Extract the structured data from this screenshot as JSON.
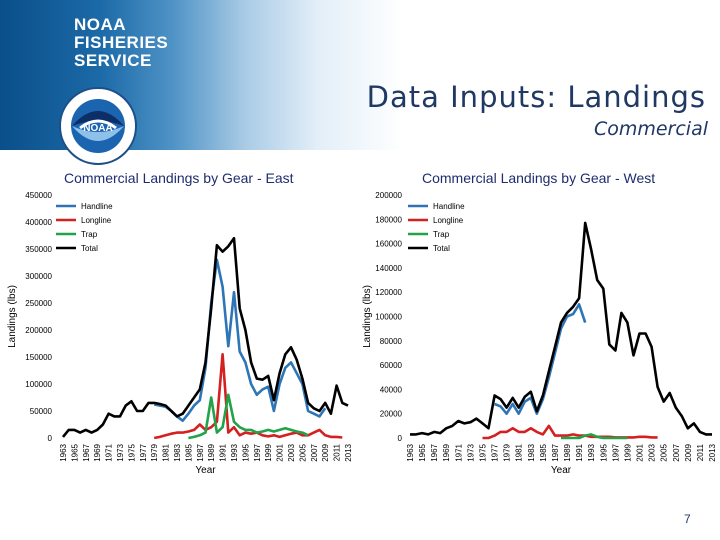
{
  "header": {
    "logo_lines": [
      "NOAA",
      "FISHERIES",
      "SERVICE"
    ],
    "title": "Data Inputs: Landings",
    "subtitle": "Commercial",
    "page_number": "7",
    "seal_text": "NOAA"
  },
  "colors": {
    "handline": "#2e75b6",
    "longline": "#d42020",
    "trap": "#22a34a",
    "total": "#000000"
  },
  "chart_data": [
    {
      "type": "line",
      "title": "Commercial Landings by Gear - East",
      "xlabel": "Year",
      "ylabel": "Landings (lbs)",
      "ylim": [
        0,
        450000
      ],
      "yticks": [
        0,
        50000,
        100000,
        150000,
        200000,
        250000,
        300000,
        350000,
        400000,
        450000
      ],
      "xlim": [
        1963,
        2013
      ],
      "xticks": [
        1963,
        1965,
        1967,
        1969,
        1971,
        1973,
        1975,
        1977,
        1979,
        1981,
        1983,
        1985,
        1987,
        1989,
        1991,
        1993,
        1995,
        1997,
        1999,
        2001,
        2003,
        2005,
        2007,
        2009,
        2011,
        2013
      ],
      "grid": false,
      "legend": "top-left",
      "series": [
        {
          "name": "Handline",
          "color_key": "handline",
          "x": [
            1979,
            1980,
            1981,
            1982,
            1983,
            1984,
            1985,
            1986,
            1987,
            1988,
            1989,
            1990,
            1991,
            1992,
            1993,
            1994,
            1995,
            1996,
            1997,
            1998,
            1999,
            2000,
            2001,
            2002,
            2003,
            2004,
            2005,
            2006,
            2007,
            2008,
            2009
          ],
          "values": [
            62000,
            60000,
            58000,
            50000,
            40000,
            32000,
            45000,
            60000,
            70000,
            130000,
            250000,
            330000,
            280000,
            170000,
            270000,
            160000,
            140000,
            100000,
            80000,
            90000,
            95000,
            50000,
            100000,
            130000,
            140000,
            120000,
            100000,
            50000,
            45000,
            40000,
            55000
          ]
        },
        {
          "name": "Longline",
          "color_key": "longline",
          "x": [
            1979,
            1980,
            1981,
            1982,
            1983,
            1984,
            1985,
            1986,
            1987,
            1988,
            1989,
            1990,
            1991,
            1992,
            1993,
            1994,
            1995,
            1996,
            1997,
            1998,
            1999,
            2000,
            2001,
            2002,
            2003,
            2004,
            2005,
            2006,
            2007,
            2008,
            2009,
            2010,
            2011,
            2012
          ],
          "values": [
            0,
            2000,
            5000,
            8000,
            10000,
            10000,
            12000,
            15000,
            25000,
            15000,
            20000,
            30000,
            155000,
            10000,
            20000,
            5000,
            10000,
            8000,
            10000,
            5000,
            3000,
            5000,
            2000,
            5000,
            8000,
            10000,
            5000,
            5000,
            10000,
            15000,
            5000,
            2000,
            2000,
            1000
          ]
        },
        {
          "name": "Trap",
          "color_key": "trap",
          "x": [
            1985,
            1986,
            1987,
            1988,
            1989,
            1990,
            1991,
            1992,
            1993,
            1994,
            1995,
            1996,
            1997,
            1998,
            1999,
            2000,
            2001,
            2002,
            2003,
            2004,
            2005,
            2006
          ],
          "values": [
            0,
            2000,
            5000,
            10000,
            75000,
            10000,
            20000,
            80000,
            30000,
            20000,
            15000,
            15000,
            10000,
            12000,
            15000,
            12000,
            15000,
            18000,
            15000,
            12000,
            10000,
            5000
          ]
        },
        {
          "name": "Total",
          "color_key": "total",
          "x": [
            1963,
            1964,
            1965,
            1966,
            1967,
            1968,
            1969,
            1970,
            1971,
            1972,
            1973,
            1974,
            1975,
            1976,
            1977,
            1978,
            1979,
            1980,
            1981,
            1982,
            1983,
            1984,
            1985,
            1986,
            1987,
            1988,
            1989,
            1990,
            1991,
            1992,
            1993,
            1994,
            1995,
            1996,
            1997,
            1998,
            1999,
            2000,
            2001,
            2002,
            2003,
            2004,
            2005,
            2006,
            2007,
            2008,
            2009,
            2010,
            2011,
            2012,
            2013
          ],
          "values": [
            2000,
            15000,
            15000,
            10000,
            15000,
            10000,
            15000,
            25000,
            45000,
            40000,
            40000,
            60000,
            68000,
            50000,
            50000,
            65000,
            65000,
            63000,
            60000,
            50000,
            40000,
            45000,
            60000,
            75000,
            90000,
            140000,
            240000,
            357000,
            345000,
            355000,
            370000,
            240000,
            200000,
            140000,
            110000,
            108000,
            115000,
            70000,
            120000,
            155000,
            168000,
            145000,
            110000,
            65000,
            55000,
            50000,
            65000,
            45000,
            97000,
            65000,
            60000
          ]
        }
      ]
    },
    {
      "type": "line",
      "title": "Commercial Landings by Gear - West",
      "xlabel": "Year",
      "ylabel": "Landings (lbs)",
      "ylim": [
        0,
        200000
      ],
      "yticks": [
        0,
        20000,
        40000,
        60000,
        80000,
        100000,
        120000,
        140000,
        160000,
        180000,
        200000
      ],
      "xlim": [
        1963,
        2013
      ],
      "xticks": [
        1963,
        1965,
        1967,
        1969,
        1971,
        1973,
        1975,
        1977,
        1979,
        1981,
        1983,
        1985,
        1987,
        1989,
        1991,
        1993,
        1995,
        1997,
        1999,
        2001,
        2003,
        2005,
        2007,
        2009,
        2011,
        2013
      ],
      "grid": false,
      "legend": "top-left",
      "series": [
        {
          "name": "Handline",
          "color_key": "handline",
          "x": [
            1977,
            1978,
            1979,
            1980,
            1981,
            1982,
            1983,
            1984,
            1985,
            1986,
            1987,
            1988,
            1989,
            1990,
            1991,
            1992
          ],
          "values": [
            28000,
            26000,
            20000,
            28000,
            20000,
            30000,
            33000,
            20000,
            32000,
            50000,
            70000,
            90000,
            100000,
            102000,
            110000,
            95000
          ]
        },
        {
          "name": "Longline",
          "color_key": "longline",
          "x": [
            1975,
            1976,
            1977,
            1978,
            1979,
            1980,
            1981,
            1982,
            1983,
            1984,
            1985,
            1986,
            1987,
            1988,
            1989,
            1990,
            1991,
            1992,
            1993,
            1994,
            1995,
            1996,
            1997,
            1998,
            1999,
            2000,
            2001,
            2002,
            2003,
            2004
          ],
          "values": [
            0,
            0,
            2000,
            5000,
            5000,
            8000,
            5000,
            5000,
            8000,
            5000,
            3000,
            10000,
            2000,
            2000,
            2000,
            3000,
            2000,
            2000,
            1000,
            1000,
            1000,
            1000,
            500,
            500,
            500,
            500,
            1000,
            1000,
            500,
            500
          ]
        },
        {
          "name": "Trap",
          "color_key": "trap",
          "x": [
            1988,
            1989,
            1990,
            1991,
            1992,
            1993,
            1994,
            1995,
            1996,
            1997,
            1998,
            1999
          ],
          "values": [
            0,
            0,
            0,
            0,
            2000,
            3000,
            1000,
            0,
            0,
            0,
            0,
            0
          ]
        },
        {
          "name": "Total",
          "color_key": "total",
          "x": [
            1963,
            1964,
            1965,
            1966,
            1967,
            1968,
            1969,
            1970,
            1971,
            1972,
            1973,
            1974,
            1975,
            1976,
            1977,
            1978,
            1979,
            1980,
            1981,
            1982,
            1983,
            1984,
            1985,
            1986,
            1987,
            1988,
            1989,
            1990,
            1991,
            1992,
            1993,
            1994,
            1995,
            1996,
            1997,
            1998,
            1999,
            2000,
            2001,
            2002,
            2003,
            2004,
            2005,
            2006,
            2007,
            2008,
            2009,
            2010,
            2011,
            2012,
            2013
          ],
          "values": [
            3000,
            3000,
            4000,
            3000,
            5000,
            4000,
            8000,
            10000,
            14000,
            12000,
            13000,
            16000,
            12000,
            8000,
            35000,
            32000,
            25000,
            33000,
            25000,
            34000,
            38000,
            22000,
            35000,
            55000,
            75000,
            95000,
            103000,
            108000,
            115000,
            177000,
            155000,
            130000,
            123000,
            77000,
            72000,
            103000,
            95000,
            68000,
            86000,
            86000,
            75000,
            42000,
            30000,
            37000,
            25000,
            18000,
            8000,
            12000,
            5000,
            3000,
            3000
          ]
        }
      ]
    }
  ]
}
